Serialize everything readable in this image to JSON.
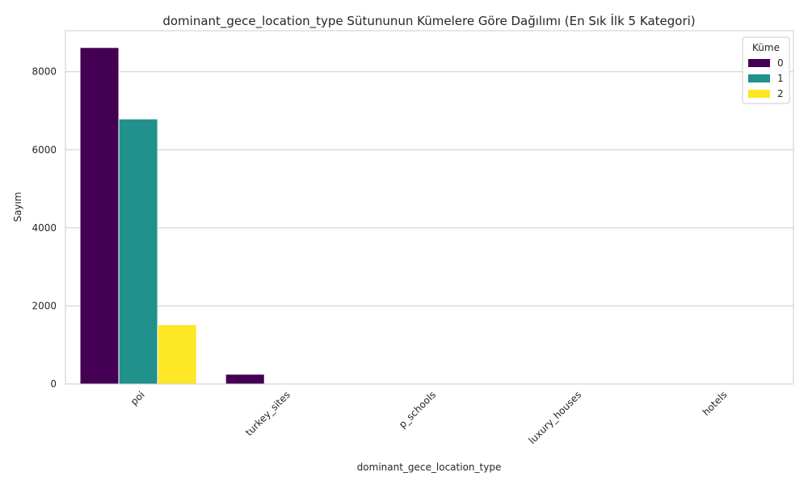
{
  "chart_data": {
    "type": "bar",
    "title": "dominant_gece_location_type Sütununun Kümelere Göre Dağılımı (En Sık İlk 5 Kategori)",
    "xlabel": "dominant_gece_location_type",
    "ylabel": "Sayım",
    "categories": [
      "poi",
      "turkey_sites",
      "p_schools",
      "luxury_houses",
      "hotels"
    ],
    "series": [
      {
        "name": "0",
        "color": "#440154",
        "values": [
          8620,
          250,
          0,
          0,
          0
        ]
      },
      {
        "name": "1",
        "color": "#21918c",
        "values": [
          6790,
          0,
          0,
          0,
          0
        ]
      },
      {
        "name": "2",
        "color": "#fde725",
        "values": [
          1520,
          0,
          0,
          0,
          0
        ]
      }
    ],
    "ylim": [
      0,
      9050
    ],
    "yticks": [
      0,
      2000,
      4000,
      6000,
      8000
    ],
    "grid": true,
    "legend": {
      "title": "Küme",
      "position": "top-right"
    }
  }
}
